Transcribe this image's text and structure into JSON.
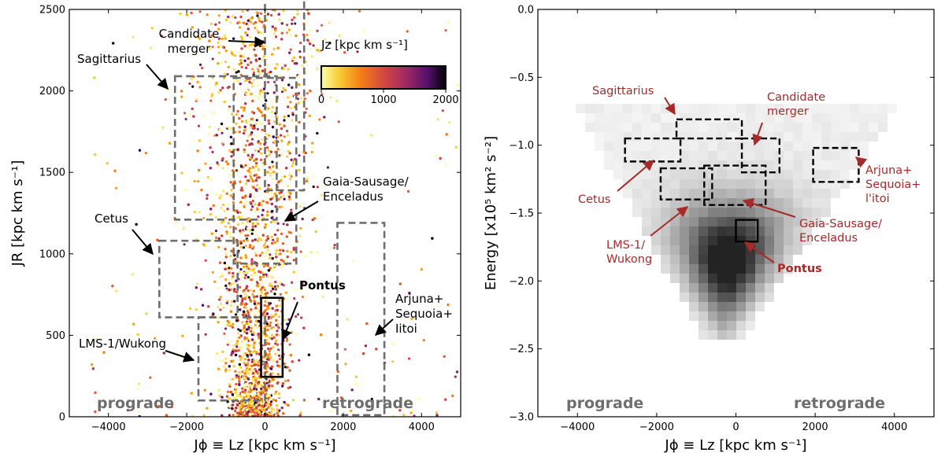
{
  "chart_data": [
    {
      "type": "scatter",
      "xlabel": "Jϕ ≡ Lz [kpc km s⁻¹]",
      "ylabel": "JR [kpc km s⁻¹]",
      "xlim": [
        -5000,
        5000
      ],
      "ylim": [
        0,
        2500
      ],
      "x_ticks": [
        -4000,
        -2000,
        0,
        2000,
        4000
      ],
      "y_ticks": [
        0,
        500,
        1000,
        1500,
        2000,
        2500
      ],
      "colorbar": {
        "label": "Jz [kpc km s⁻¹]",
        "range": [
          0,
          2000
        ],
        "ticks": [
          0,
          1000,
          2000
        ],
        "colormap": "inferno_r"
      },
      "region_boxes": [
        {
          "name": "Candidate merger",
          "x": [
            0,
            1000
          ],
          "y": [
            1390,
            2580
          ],
          "style": "dashed"
        },
        {
          "name": "Sagittarius",
          "x": [
            -2300,
            300
          ],
          "y": [
            1210,
            2090
          ],
          "style": "dashed"
        },
        {
          "name": "Gaia-Sausage/Enceladus",
          "x": [
            -800,
            800
          ],
          "y": [
            940,
            2080
          ],
          "style": "dashed"
        },
        {
          "name": "Cetus",
          "x": [
            -2700,
            -700
          ],
          "y": [
            610,
            1080
          ],
          "style": "dashed"
        },
        {
          "name": "LMS-1/Wukong",
          "x": [
            -1700,
            0
          ],
          "y": [
            100,
            610
          ],
          "style": "dashed"
        },
        {
          "name": "Arjuna+Sequoia+Iitoi",
          "x": [
            1850,
            3050
          ],
          "y": [
            10,
            1190
          ],
          "style": "dashed"
        },
        {
          "name": "Pontus",
          "x": [
            -100,
            450
          ],
          "y": [
            245,
            730
          ],
          "style": "solid"
        }
      ],
      "annotations": [
        {
          "text": [
            "Candidate",
            "merger"
          ]
        },
        {
          "text": [
            "Sagittarius"
          ]
        },
        {
          "text": [
            "Gaia-Sausage/",
            "Enceladus"
          ]
        },
        {
          "text": [
            "Cetus"
          ]
        },
        {
          "text": [
            "Pontus"
          ]
        },
        {
          "text": [
            "Arjuna+",
            "Sequoia+",
            "Iitoi"
          ]
        },
        {
          "text": [
            "LMS-1/Wukong"
          ]
        }
      ],
      "direction_labels": [
        "prograde",
        "retrograde"
      ]
    },
    {
      "type": "heatmap",
      "xlabel": "Jϕ ≡ Lz [kpc km s⁻¹]",
      "ylabel": "Energy [x10⁵ km² s⁻²]",
      "xlim": [
        -5000,
        5000
      ],
      "ylim": [
        -3.0,
        0.0
      ],
      "x_ticks": [
        -4000,
        -2000,
        0,
        2000,
        4000
      ],
      "y_ticks": [
        -3.0,
        -2.5,
        -2.0,
        -1.5,
        -1.0,
        -0.5,
        0.0
      ],
      "region_boxes": [
        {
          "name": "Sagittarius",
          "x": [
            -1500,
            150
          ],
          "y": [
            -0.95,
            -0.81
          ],
          "style": "dashed"
        },
        {
          "name": "Cetus",
          "x": [
            -2800,
            -1400
          ],
          "y": [
            -1.12,
            -0.95
          ],
          "style": "dashed"
        },
        {
          "name": "Candidate merger",
          "x": [
            150,
            1100
          ],
          "y": [
            -1.2,
            -0.95
          ],
          "style": "dashed"
        },
        {
          "name": "LMS-1/Wukong",
          "x": [
            -1900,
            -600
          ],
          "y": [
            -1.4,
            -1.17
          ],
          "style": "dashed"
        },
        {
          "name": "Gaia-Sausage/Enceladus",
          "x": [
            -800,
            750
          ],
          "y": [
            -1.44,
            -1.15
          ],
          "style": "dashed"
        },
        {
          "name": "Arjuna+Sequoia+l'itoi",
          "x": [
            1950,
            3100
          ],
          "y": [
            -1.27,
            -1.02
          ],
          "style": "dashed"
        },
        {
          "name": "Pontus",
          "x": [
            0,
            550
          ],
          "y": [
            -1.71,
            -1.55
          ],
          "style": "solid"
        }
      ],
      "annotations": [
        {
          "text": [
            "Sagittarius"
          ]
        },
        {
          "text": [
            "Candidate",
            "merger"
          ]
        },
        {
          "text": [
            "Cetus"
          ]
        },
        {
          "text": [
            "Arjuna+",
            "Sequoia+",
            "l'itoi"
          ]
        },
        {
          "text": [
            "Gaia-Sausage/",
            "Enceladus"
          ]
        },
        {
          "text": [
            "LMS-1/",
            "Wukong"
          ]
        },
        {
          "text": [
            "Pontus"
          ]
        }
      ],
      "direction_labels": [
        "prograde",
        "retrograde"
      ]
    }
  ]
}
